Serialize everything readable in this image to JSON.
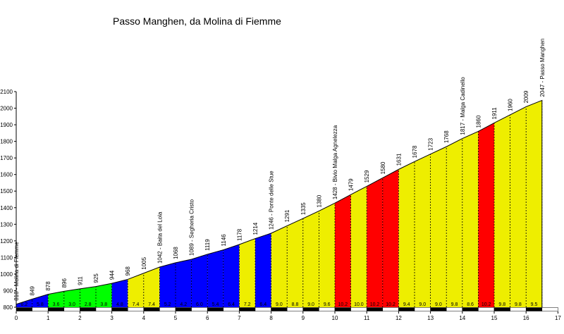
{
  "chart_data": {
    "type": "area",
    "title": "Passo Manghen, da Molina di Fiemme",
    "xlabel": "",
    "ylabel": "",
    "xlim": [
      0,
      17
    ],
    "ylim": [
      800,
      2100
    ],
    "x_ticks": [
      "0",
      "1",
      "2",
      "3",
      "4",
      "5",
      "6",
      "7",
      "8",
      "9",
      "10",
      "11",
      "12",
      "13",
      "14",
      "15",
      "16",
      "17"
    ],
    "y_ticks": [
      "800",
      "900",
      "1000",
      "1100",
      "1200",
      "1300",
      "1400",
      "1500",
      "1600",
      "1700",
      "1800",
      "1900",
      "2000",
      "2100"
    ],
    "colors": {
      "green": "#00ff00",
      "blue": "#0000ff",
      "yellow": "#eeee00",
      "red": "#ff0000"
    },
    "x": [
      0,
      0.5,
      1,
      1.5,
      2,
      2.5,
      3,
      3.5,
      4,
      4.5,
      5,
      5.5,
      6,
      6.5,
      7,
      7.5,
      8,
      8.5,
      9,
      9.5,
      10,
      10.5,
      11,
      11.5,
      12,
      12.5,
      13,
      13.5,
      14,
      14.5,
      15,
      15.5,
      16,
      16.5
    ],
    "elevation": [
      818,
      849,
      878,
      896,
      911,
      925,
      944,
      968,
      1005,
      1042,
      1068,
      1089,
      1119,
      1146,
      1178,
      1214,
      1246,
      1291,
      1335,
      1380,
      1428,
      1479,
      1529,
      1580,
      1631,
      1678,
      1723,
      1768,
      1817,
      1860,
      1911,
      1960,
      2009,
      2047
    ],
    "altitude_labels": [
      "818 - Molina di Fiemme",
      "849",
      "878",
      "896",
      "911",
      "925",
      "944",
      "968",
      "1005",
      "1042 - Baita del Lola",
      "1068",
      "1089 - Segheria Cristo",
      "1119",
      "1146",
      "1178",
      "1214",
      "1246 - Ponte delle Stue",
      "1291",
      "1335",
      "1380",
      "1428 - Bivio Malga Agnelezza",
      "1479",
      "1529",
      "1580",
      "1631",
      "1678",
      "1723",
      "1768",
      "1817 - Malga Cadinello",
      "1860",
      "1911",
      "1960",
      "2009",
      "2047 - Passo Manghen"
    ],
    "gradients": [
      "6.2",
      "5.8",
      "3.6",
      "3.0",
      "2.8",
      "3.8",
      "4.8",
      "7.4",
      "7.4",
      "5.2",
      "4.2",
      "6.0",
      "5.4",
      "6.4",
      "7.2",
      "6.4",
      "9.0",
      "8.8",
      "9.0",
      "9.6",
      "10.2",
      "10.0",
      "10.2",
      "10.2",
      "9.4",
      "9.0",
      "9.0",
      "9.8",
      "8.6",
      "10.2",
      "9.8",
      "9.8",
      "9.5"
    ],
    "segment_colors": [
      "blue",
      "blue",
      "green",
      "green",
      "green",
      "green",
      "blue",
      "yellow",
      "yellow",
      "blue",
      "blue",
      "blue",
      "blue",
      "blue",
      "yellow",
      "blue",
      "yellow",
      "yellow",
      "yellow",
      "yellow",
      "red",
      "yellow",
      "red",
      "red",
      "yellow",
      "yellow",
      "yellow",
      "yellow",
      "yellow",
      "red",
      "yellow",
      "yellow",
      "yellow"
    ],
    "grid": false,
    "legend": "none"
  }
}
